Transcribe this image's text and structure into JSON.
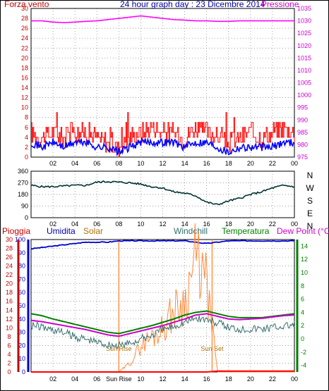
{
  "header": {
    "wind_label": "Forza vento",
    "title": "24 hour graph day : 23 Dicembre 2014",
    "pressure_label": "Pressione"
  },
  "legend": {
    "rain": "Pioggia",
    "humidity": "Umidita",
    "solar": "Solar",
    "windchill": "Windchill",
    "temperature": "Temperatura",
    "dewpoint": "Dew Point (°C)"
  },
  "annotations": {
    "sunrise": "Sun Rise",
    "sunset": "Sun Set",
    "sunrise_tick": "Sun Rise"
  },
  "colors": {
    "wind": "#ff0000",
    "gust": "#ff0000",
    "wind_avg": "#0000ff",
    "pressure": "#ff00ff",
    "direction": "#003333",
    "humidity": "#0000cc",
    "solar": "#ff8a3c",
    "windchill": "#3c7272",
    "temperature": "#008000",
    "dewpoint": "#cc00cc",
    "rain": "#ff0000",
    "grid": "#808080",
    "axis_left": "#c00000",
    "axis_right_pressure": "#cc00cc",
    "axis_hum": "#0000cc",
    "axis_temp": "#008000"
  },
  "chart_data": [
    {
      "type": "line",
      "name": "wind",
      "x_ticks": [
        "02",
        "04",
        "06",
        "08",
        "10",
        "12",
        "14",
        "16",
        "18",
        "20",
        "22",
        "00"
      ],
      "y_left_ticks": [
        "0",
        "2",
        "4",
        "6",
        "8",
        "10",
        "12",
        "14",
        "16",
        "18",
        "20",
        "22",
        "24",
        "26",
        "28",
        "30"
      ],
      "y_right_ticks": [
        "975",
        "980",
        "985",
        "990",
        "995",
        "1000",
        "1005",
        "1010",
        "1015",
        "1020",
        "1025",
        "1030",
        "1035"
      ],
      "ylim_left": [
        0,
        30
      ],
      "ylim_right": [
        975,
        1035
      ],
      "gust_hourly": [
        5,
        4,
        5,
        4,
        5,
        5,
        4,
        3,
        2,
        4,
        5,
        6,
        5,
        5,
        4,
        6,
        5,
        4,
        3,
        4,
        5,
        4,
        5,
        6,
        5
      ],
      "avg_hourly": [
        3,
        2,
        3,
        2,
        3,
        3,
        2,
        2,
        1,
        2,
        3,
        3,
        3,
        3,
        2,
        3,
        3,
        2,
        1,
        2,
        2,
        2,
        2,
        3,
        3
      ],
      "pressure_hourly": [
        1030,
        1030,
        1029.5,
        1029.3,
        1029.5,
        1029.8,
        1030,
        1030.5,
        1031,
        1031.5,
        1032,
        1031.5,
        1031,
        1030.5,
        1030.3,
        1030,
        1030,
        1029.8,
        1029.8,
        1030,
        1030,
        1030,
        1030,
        1030,
        1030
      ]
    },
    {
      "type": "line",
      "name": "direction",
      "x_ticks": [
        "02",
        "04",
        "06",
        "08",
        "10",
        "12",
        "14",
        "16",
        "18",
        "20",
        "22",
        "00"
      ],
      "y_left_ticks": [
        "0",
        "90",
        "180",
        "270",
        "360"
      ],
      "y_right_labels": [
        "N",
        "W",
        "S",
        "E",
        "N"
      ],
      "ylim": [
        0,
        360
      ],
      "direction_hourly": [
        250,
        240,
        240,
        245,
        250,
        250,
        275,
        280,
        275,
        270,
        260,
        240,
        230,
        200,
        190,
        170,
        120,
        100,
        130,
        150,
        180,
        200,
        230,
        250,
        240
      ]
    },
    {
      "type": "line",
      "name": "weather",
      "x_ticks": [
        "02",
        "04",
        "06",
        "Sun Rise",
        "10",
        "12",
        "14",
        "16",
        "18",
        "20",
        "22",
        "00"
      ],
      "y_left_ticks_rain": [
        "0",
        "2",
        "4",
        "6",
        "8",
        "10",
        "12",
        "14",
        "16",
        "18",
        "20",
        "22",
        "24",
        "26",
        "28",
        "30"
      ],
      "y_left_ticks_hum": [
        "0",
        "10",
        "20",
        "30",
        "40",
        "50",
        "60",
        "70",
        "80",
        "90",
        "100"
      ],
      "y_right_ticks_temp": [
        "-4",
        "-2",
        "0",
        "2",
        "4",
        "6",
        "8",
        "10",
        "12",
        "14"
      ],
      "ylim_rain": [
        0,
        30
      ],
      "ylim_hum": [
        0,
        100
      ],
      "ylim_temp": [
        -5,
        15
      ],
      "hours": [
        0,
        1,
        2,
        3,
        4,
        5,
        6,
        7,
        8,
        9,
        10,
        11,
        12,
        13,
        14,
        15,
        16,
        17,
        18,
        19,
        20,
        21,
        22,
        23,
        24
      ],
      "humidity": [
        93,
        94,
        95,
        96,
        97,
        98,
        98,
        98,
        99,
        99,
        99,
        99,
        99,
        99,
        99,
        98,
        97,
        98,
        99,
        99,
        99,
        99,
        99,
        99,
        99
      ],
      "temperature": [
        3.8,
        3.5,
        3.0,
        2.6,
        2.2,
        1.8,
        1.4,
        1.0,
        0.8,
        1.2,
        1.6,
        2.0,
        2.5,
        3.0,
        3.6,
        4.0,
        4.2,
        3.8,
        3.4,
        3.2,
        3.2,
        3.2,
        3.4,
        3.6,
        3.8
      ],
      "dewpoint": [
        2.8,
        2.6,
        2.3,
        2.0,
        1.7,
        1.4,
        1.0,
        0.6,
        0.4,
        0.8,
        1.2,
        1.6,
        2.0,
        2.5,
        3.0,
        3.6,
        3.8,
        3.4,
        3.0,
        2.9,
        3.0,
        3.1,
        3.3,
        3.5,
        3.6
      ],
      "windchill": [
        2.8,
        2.4,
        2.0,
        1.6,
        1.0,
        0.6,
        0.2,
        -0.2,
        -0.4,
        0.0,
        0.6,
        1.2,
        2.0,
        2.6,
        3.2,
        3.8,
        3.6,
        3.0,
        2.4,
        2.2,
        2.2,
        2.2,
        2.4,
        2.6,
        2.8
      ],
      "solar_hourly": [
        0,
        0,
        0,
        0,
        0,
        0,
        0,
        0,
        0,
        2,
        6,
        8,
        10,
        14,
        16,
        26,
        20,
        0,
        0,
        0,
        0,
        0,
        0,
        0,
        0
      ],
      "rain": [
        0,
        0,
        0,
        0,
        0,
        0,
        0,
        0,
        0,
        0,
        0,
        0,
        0,
        0,
        0,
        0,
        0,
        0.2,
        0.2,
        0.2,
        0.2,
        0.2,
        0.2,
        0.2,
        0.2
      ],
      "sunrise_hour": 8,
      "sunset_hour": 16.5
    }
  ]
}
